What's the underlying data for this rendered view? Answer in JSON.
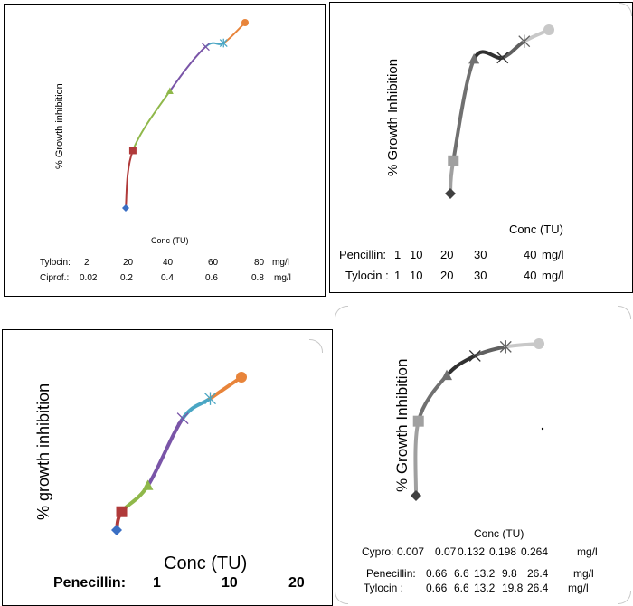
{
  "chart_data": [
    {
      "type": "line",
      "ylabel": "% Growth inhibition",
      "xlabel": "Conc  (TU)",
      "x_scales": [
        {
          "label": "Tylocin:",
          "ticks": [
            "2",
            "20",
            "40",
            "60",
            "80"
          ],
          "unit": "mg/l"
        },
        {
          "label": "Ciprof.:",
          "ticks": [
            "0.02",
            "0.2",
            "0.4",
            "0.6",
            "0.8"
          ],
          "unit": "mg/l"
        }
      ],
      "series_colors": [
        "#3a6fc4",
        "#b03a3a",
        "#8fb84a",
        "#7a55a8",
        "#4aa6c4",
        "#e8843a"
      ],
      "markers": [
        "diamond",
        "square",
        "triangle",
        "x",
        "star",
        "circle"
      ],
      "points": [
        {
          "x": 0.0,
          "y": 0.0
        },
        {
          "x": 0.06,
          "y": 0.31
        },
        {
          "x": 0.37,
          "y": 0.63
        },
        {
          "x": 0.67,
          "y": 0.87
        },
        {
          "x": 0.82,
          "y": 0.89
        },
        {
          "x": 1.0,
          "y": 1.0
        }
      ]
    },
    {
      "type": "line",
      "ylabel": "% Growth Inhibition",
      "xlabel": "Conc (TU)",
      "x_scales": [
        {
          "label": "Pencillin:",
          "ticks": [
            "1",
            "10",
            "20",
            "30",
            "40"
          ],
          "unit": "mg/l"
        },
        {
          "label": "Tylocin :",
          "ticks": [
            "1",
            "10",
            "20",
            "30",
            "40"
          ],
          "unit": "mg/l"
        }
      ],
      "series_colors": [
        "#404040",
        "#a0a0a0",
        "#707070",
        "#303030",
        "#606060",
        "#c8c8c8"
      ],
      "markers": [
        "diamond",
        "square",
        "triangle",
        "x",
        "star",
        "circle"
      ],
      "points": [
        {
          "x": 0.0,
          "y": 0.0
        },
        {
          "x": 0.03,
          "y": 0.2
        },
        {
          "x": 0.24,
          "y": 0.82
        },
        {
          "x": 0.53,
          "y": 0.83
        },
        {
          "x": 0.75,
          "y": 0.93
        },
        {
          "x": 1.0,
          "y": 1.0
        }
      ]
    },
    {
      "type": "line",
      "ylabel": "% growth inhibition",
      "xlabel": "Conc (TU)",
      "x_scales": [
        {
          "label": "Penecillin:",
          "ticks": [
            "1",
            "10",
            "20"
          ],
          "unit": ""
        }
      ],
      "series_colors": [
        "#3a6fc4",
        "#b03a3a",
        "#8fb84a",
        "#7a55a8",
        "#4aa6c4",
        "#e8843a"
      ],
      "markers": [
        "diamond",
        "square",
        "triangle",
        "x",
        "star",
        "circle"
      ],
      "points": [
        {
          "x": 0.0,
          "y": 0.0
        },
        {
          "x": 0.04,
          "y": 0.12
        },
        {
          "x": 0.25,
          "y": 0.29
        },
        {
          "x": 0.53,
          "y": 0.73
        },
        {
          "x": 0.75,
          "y": 0.86
        },
        {
          "x": 1.0,
          "y": 1.0
        }
      ]
    },
    {
      "type": "line",
      "ylabel": "% Growth Inhibition",
      "xlabel": "Conc (TU)",
      "x_scales": [
        {
          "label": "Cypro:",
          "ticks": [
            "0.007",
            "0.07",
            "0.132",
            "0.198",
            "0.264"
          ],
          "unit": "mg/l"
        },
        {
          "label": "Penecillin:",
          "ticks": [
            "0.66",
            "6.6",
            "13.2",
            "9.8",
            "26.4"
          ],
          "unit": "mg/l"
        },
        {
          "label": "Tylocin  :",
          "ticks": [
            "0.66",
            "6.6",
            "13.2",
            "19.8",
            "26.4"
          ],
          "unit": "mg/l"
        }
      ],
      "series_colors": [
        "#404040",
        "#a0a0a0",
        "#707070",
        "#303030",
        "#606060",
        "#c8c8c8"
      ],
      "markers": [
        "diamond",
        "square",
        "triangle",
        "x",
        "star",
        "circle"
      ],
      "points": [
        {
          "x": 0.0,
          "y": 0.0
        },
        {
          "x": 0.02,
          "y": 0.49
        },
        {
          "x": 0.25,
          "y": 0.79
        },
        {
          "x": 0.48,
          "y": 0.92
        },
        {
          "x": 0.73,
          "y": 0.98
        },
        {
          "x": 1.0,
          "y": 1.0
        }
      ]
    }
  ]
}
